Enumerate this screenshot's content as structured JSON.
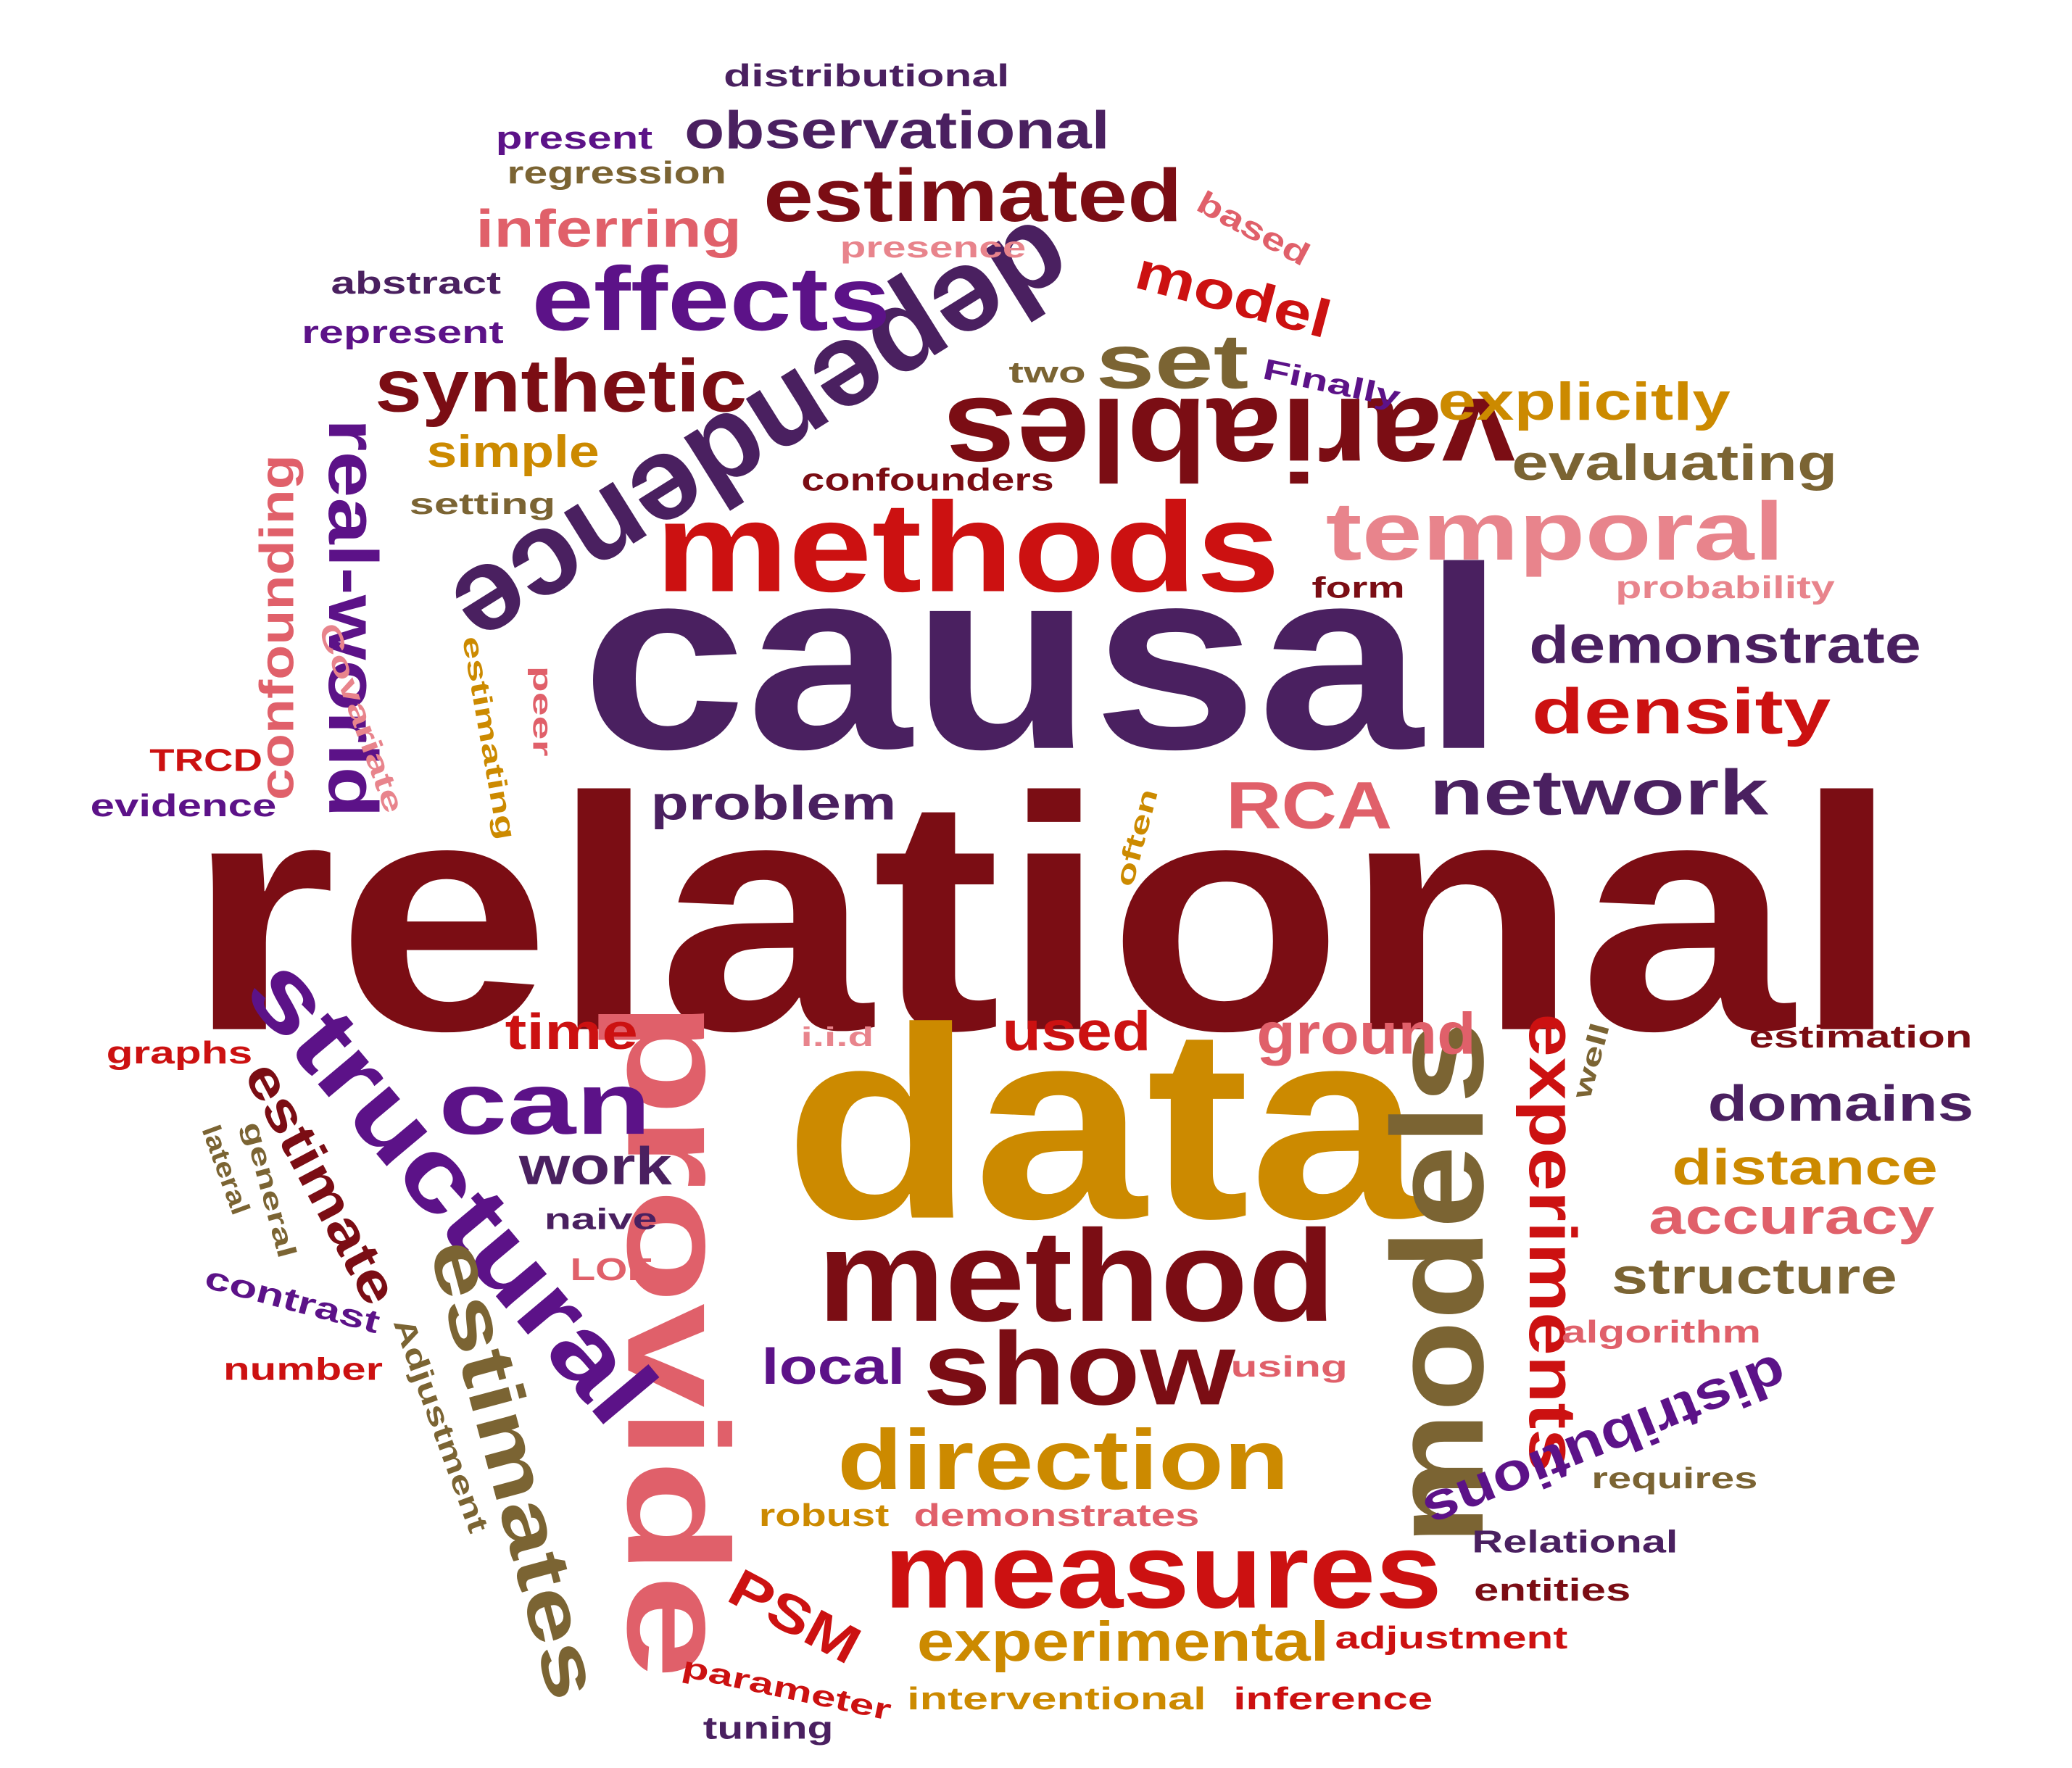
{
  "palette": {
    "maroon": "#7b0d14",
    "plum": "#4a2060",
    "purple": "#5c1288",
    "red": "#cc1111",
    "salmon": "#e0606a",
    "gold": "#cc8a00",
    "olive": "#7b6433",
    "rose": "#e8848c"
  },
  "words": {
    "relational": "relational",
    "causal": "causal",
    "data": "data",
    "methods": "methods",
    "method": "method",
    "dependence": "dependence",
    "provide": "provide",
    "models": "models",
    "variables": "variables",
    "measures": "measures",
    "structural": "structural",
    "show": "show",
    "effects": "effects",
    "estimated": "estimated",
    "temporal": "temporal",
    "direction": "direction",
    "estimates": "estimates",
    "experiments": "experiments",
    "synthetic": "synthetic",
    "can": "can",
    "set": "set",
    "observational": "observational",
    "realworld": "real-world",
    "network": "network",
    "density": "density",
    "demonstrate": "demonstrate",
    "rca": "RCA",
    "ground": "ground",
    "experimental": "experimental",
    "explicitly": "explicitly",
    "evaluating": "evaluating",
    "inferring": "inferring",
    "problem": "problem",
    "confounding": "confounding",
    "domains": "domains",
    "distance": "distance",
    "accuracy": "accuracy",
    "structure": "structure",
    "distributions": "distributions",
    "used": "used",
    "time": "time",
    "work": "work",
    "local": "local",
    "model": "model",
    "simple": "simple",
    "estimate": "estimate",
    "psm": "PSM",
    "distributional": "distributional",
    "present": "present",
    "regression": "regression",
    "abstract": "abstract",
    "represent": "represent",
    "presence": "presence",
    "based": "based",
    "two": "two",
    "finally": "Finally",
    "confounders": "confounders",
    "setting": "setting",
    "form": "form",
    "probability": "probability",
    "covariate": "Covariate",
    "estimating": "estimating",
    "peer": "peer",
    "trcd": "TRCD",
    "evidence": "evidence",
    "often": "often",
    "iid": "i.i.d",
    "graphs": "graphs",
    "estimation": "estimation",
    "well": "well",
    "general": "general",
    "naive": "naive",
    "lof": "LOF",
    "contrast": "contrast",
    "number": "number",
    "adjustment_cap": "Adjustment",
    "using": "using",
    "algorithm": "algorithm",
    "requires": "requires",
    "robust": "robust",
    "demonstrates": "demonstrates",
    "relational_cap": "Relational",
    "entities": "entities",
    "adjustment": "adjustment",
    "parameter": "parameter",
    "interventional": "interventional",
    "inference": "inference",
    "tuning": "tuning",
    "lateral": "lateral"
  }
}
